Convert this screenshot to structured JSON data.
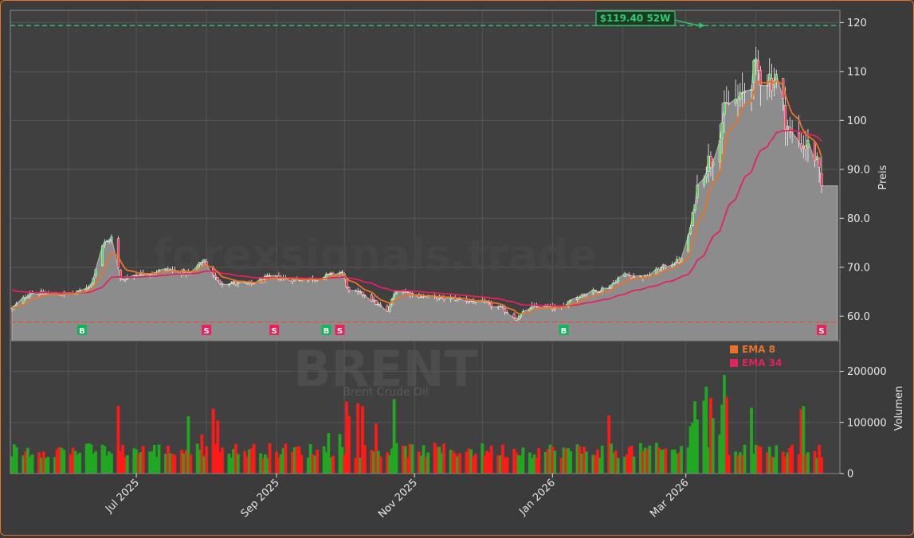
{
  "chart_data": {
    "type": "candlestick",
    "watermark_site": "forexsignals.trade",
    "watermark_symbol": "BRENT",
    "watermark_name": "Brent Crude Oil",
    "ylabel_price": "Preis",
    "ylabel_volume": "Volumen",
    "price_ylim": [
      55.0,
      122.5
    ],
    "price_ticks": [
      60,
      70,
      80,
      90,
      100,
      110,
      120
    ],
    "price_tick_labels": [
      "60.0",
      "70.0",
      "80.0",
      "90.0",
      "100",
      "110",
      "120"
    ],
    "volume_ylim": [
      0,
      260000
    ],
    "volume_ticks": [
      0,
      100000,
      200000
    ],
    "volume_tick_labels": [
      "0",
      "100000",
      "200000"
    ],
    "x_ticks": [
      {
        "date": "2025-07-01",
        "label": "Jul 2025"
      },
      {
        "date": "2025-09-01",
        "label": "Sep 2025"
      },
      {
        "date": "2025-11-01",
        "label": "Nov 2025"
      },
      {
        "date": "2026-01-01",
        "label": "Jan 2026"
      },
      {
        "date": "2026-03-01",
        "label": "Mar 2026"
      }
    ],
    "date_range": [
      "2025-05-07",
      "2026-04-30"
    ],
    "high_52w": {
      "value": 119.4,
      "label": "$119.40 52W",
      "date": "2026-03-09"
    },
    "low_line": {
      "value": 58.8
    },
    "legend": [
      {
        "name": "EMA 8",
        "color": "#e8742a"
      },
      {
        "name": "EMA 34",
        "color": "#e0245e"
      }
    ],
    "colors": {
      "up": "#22a722",
      "down": "#ff1a1a",
      "ema8": "#e8742a",
      "ema34": "#e0245e",
      "high_line": "#2ecc71",
      "low_line": "#e74c3c",
      "area": "#8c8c8c"
    },
    "close_anchors": [
      [
        "2025-05-07",
        61.5
      ],
      [
        "2025-05-15",
        64.8
      ],
      [
        "2025-05-28",
        64.5
      ],
      [
        "2025-06-05",
        64.8
      ],
      [
        "2025-06-11",
        66.5
      ],
      [
        "2025-06-16",
        74.5
      ],
      [
        "2025-06-20",
        76.0
      ],
      [
        "2025-06-24",
        67.5
      ],
      [
        "2025-07-01",
        68.5
      ],
      [
        "2025-07-15",
        69.5
      ],
      [
        "2025-07-25",
        68.8
      ],
      [
        "2025-07-31",
        71.5
      ],
      [
        "2025-08-06",
        67.0
      ],
      [
        "2025-08-20",
        66.5
      ],
      [
        "2025-08-29",
        68.0
      ],
      [
        "2025-09-10",
        67.5
      ],
      [
        "2025-09-20",
        67.8
      ],
      [
        "2025-09-30",
        69.0
      ],
      [
        "2025-10-03",
        65.0
      ],
      [
        "2025-10-10",
        64.5
      ],
      [
        "2025-10-20",
        60.8
      ],
      [
        "2025-10-24",
        65.5
      ],
      [
        "2025-11-05",
        64.0
      ],
      [
        "2025-11-20",
        63.5
      ],
      [
        "2025-12-01",
        62.8
      ],
      [
        "2025-12-10",
        61.5
      ],
      [
        "2025-12-16",
        59.5
      ],
      [
        "2025-12-23",
        62.0
      ],
      [
        "2026-01-05",
        61.5
      ],
      [
        "2026-01-09",
        63.5
      ],
      [
        "2026-01-15",
        64.5
      ],
      [
        "2026-01-26",
        66.0
      ],
      [
        "2026-02-01",
        68.5
      ],
      [
        "2026-02-11",
        68.0
      ],
      [
        "2026-02-21",
        70.5
      ],
      [
        "2026-02-27",
        71.5
      ],
      [
        "2026-03-03",
        78.0
      ],
      [
        "2026-03-06",
        86.0
      ],
      [
        "2026-03-09",
        90.5
      ],
      [
        "2026-03-12",
        92.0
      ],
      [
        "2026-03-17",
        100.0
      ],
      [
        "2026-03-21",
        104.5
      ],
      [
        "2026-03-25",
        103.5
      ],
      [
        "2026-03-28",
        108.0
      ],
      [
        "2026-04-01",
        110.0
      ],
      [
        "2026-04-05",
        109.0
      ],
      [
        "2026-04-10",
        108.5
      ],
      [
        "2026-04-16",
        97.0
      ],
      [
        "2026-04-22",
        95.5
      ],
      [
        "2026-04-27",
        93.0
      ],
      [
        "2026-04-30",
        86.0
      ]
    ],
    "signals": [
      {
        "date": "2025-06-07",
        "label": "B"
      },
      {
        "date": "2025-08-01",
        "label": "S"
      },
      {
        "date": "2025-08-31",
        "label": "S"
      },
      {
        "date": "2025-09-23",
        "label": "B"
      },
      {
        "date": "2025-09-29",
        "label": "S"
      },
      {
        "date": "2026-01-06",
        "label": "B"
      },
      {
        "date": "2026-04-30",
        "label": "S"
      }
    ]
  }
}
